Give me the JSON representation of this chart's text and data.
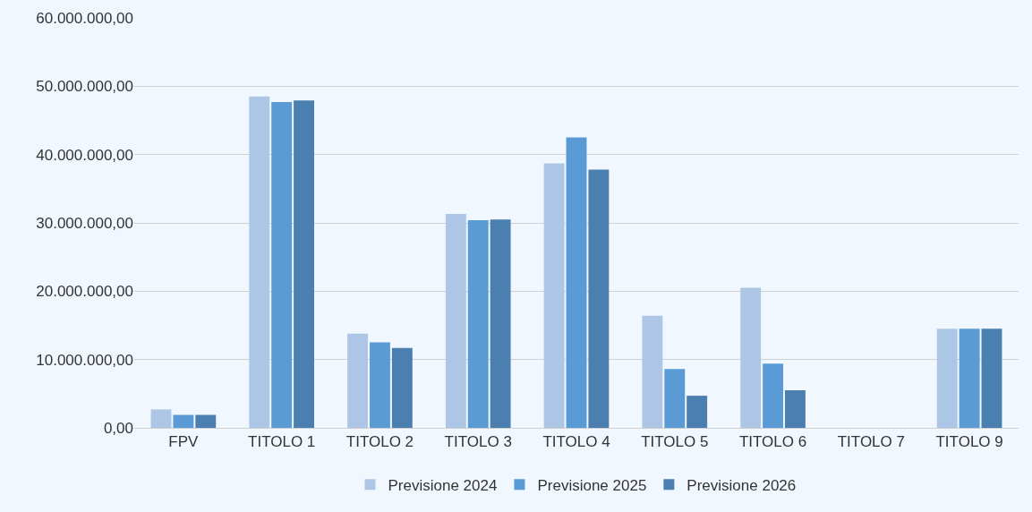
{
  "chart_data": {
    "type": "bar",
    "categories": [
      "FPV",
      "TITOLO 1",
      "TITOLO 2",
      "TITOLO 3",
      "TITOLO 4",
      "TITOLO 5",
      "TITOLO 6",
      "TITOLO 7",
      "TITOLO 9"
    ],
    "series": [
      {
        "name": "Previsione 2024",
        "color": "#adc6e6",
        "values": [
          2700000,
          48500000,
          13800000,
          31300000,
          38700000,
          16400000,
          20500000,
          0,
          14500000
        ]
      },
      {
        "name": "Previsione 2025",
        "color": "#5b9bd5",
        "values": [
          1900000,
          47700000,
          12500000,
          30400000,
          42500000,
          8600000,
          9400000,
          0,
          14500000
        ]
      },
      {
        "name": "Previsione 2026",
        "color": "#4a7fb0",
        "values": [
          1900000,
          47900000,
          11700000,
          30500000,
          37800000,
          4700000,
          5500000,
          0,
          14500000
        ]
      }
    ],
    "ylim": [
      0,
      60000000
    ],
    "yticks": [
      {
        "value": 0,
        "label": "0,00"
      },
      {
        "value": 10000000,
        "label": "10.000.000,00"
      },
      {
        "value": 20000000,
        "label": "20.000.000,00"
      },
      {
        "value": 30000000,
        "label": "30.000.000,00"
      },
      {
        "value": 40000000,
        "label": "40.000.000,00"
      },
      {
        "value": 50000000,
        "label": "50.000.000,00"
      },
      {
        "value": 60000000,
        "label": "60.000.000,00"
      }
    ],
    "grid": "y",
    "legend": "bottom"
  }
}
